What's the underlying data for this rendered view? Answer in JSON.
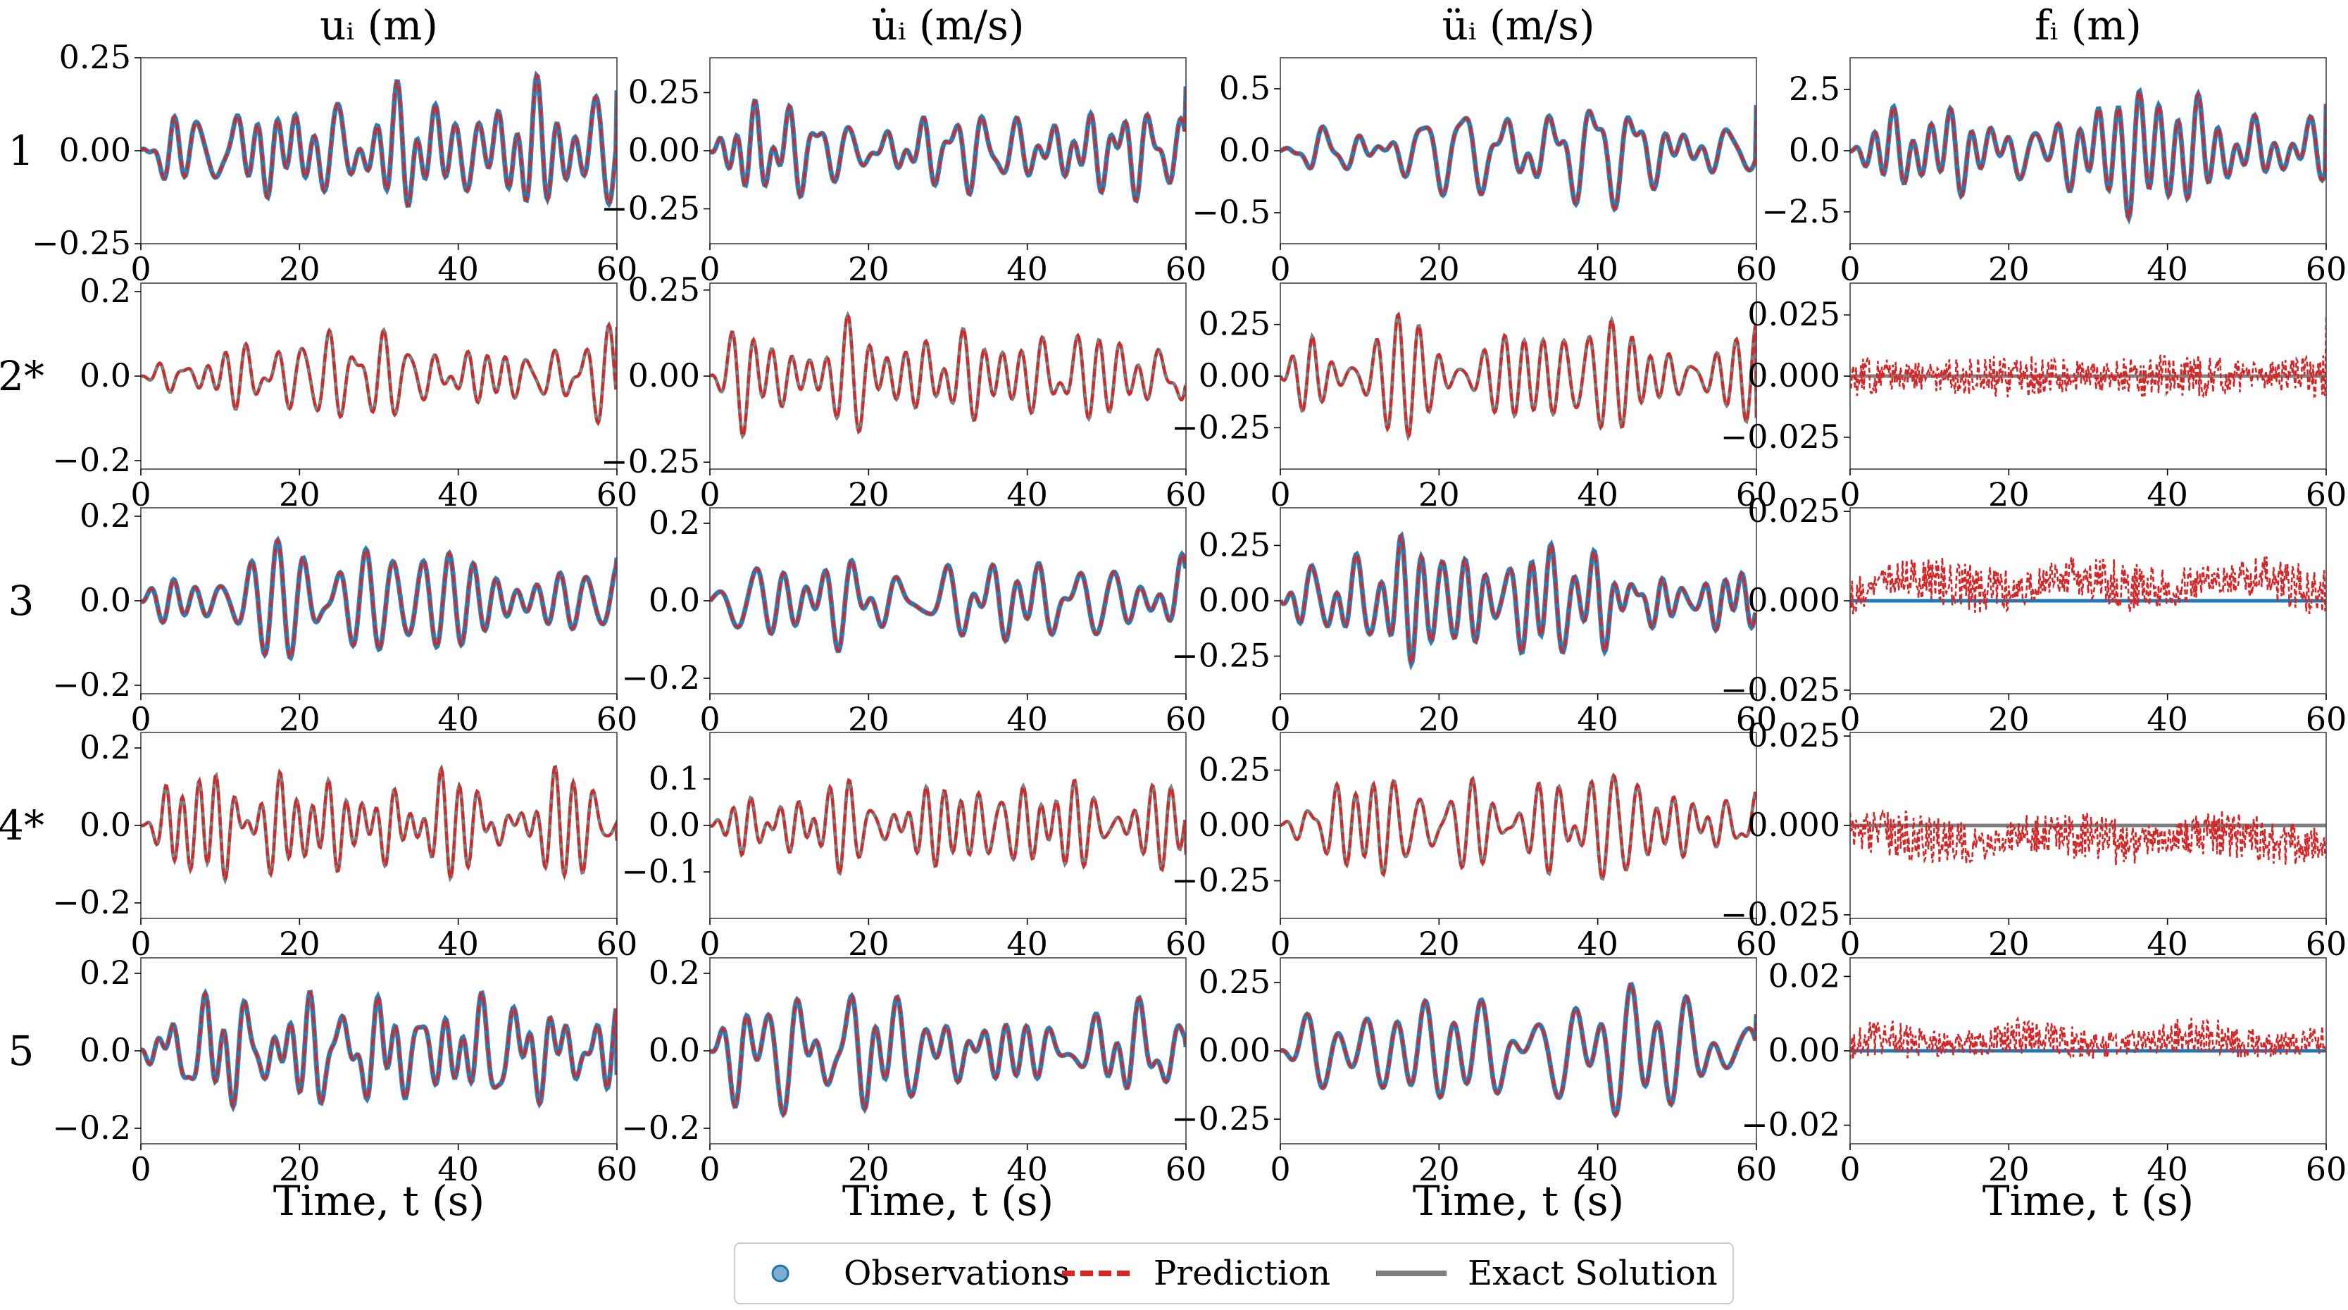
{
  "figure": {
    "columns": [
      {
        "key": "u",
        "title": "uᵢ (m)"
      },
      {
        "key": "udot",
        "title": "u̇ᵢ (m/s)"
      },
      {
        "key": "uddot",
        "title": "üᵢ (m/s)"
      },
      {
        "key": "f",
        "title": "fᵢ (m)"
      }
    ],
    "rows": [
      {
        "label": "1",
        "observed": true
      },
      {
        "label": "2*",
        "observed": false
      },
      {
        "label": "3",
        "observed": true
      },
      {
        "label": "4*",
        "observed": false
      },
      {
        "label": "5",
        "observed": true
      }
    ],
    "xlabel": "Time, t (s)",
    "colors": {
      "observations": "#1f77b4",
      "prediction": "#d62728",
      "exact": "#7f7f7f"
    },
    "legend": {
      "placement": "bottom-center",
      "entries": [
        {
          "key": "observations",
          "label": "Observations",
          "marker": "circle"
        },
        {
          "key": "prediction",
          "label": "Prediction",
          "style": "dashed"
        },
        {
          "key": "exact",
          "label": "Exact Solution",
          "style": "solid"
        }
      ]
    }
  },
  "chart_data": [
    {
      "type": "line",
      "row": "1",
      "column": "uᵢ (m)",
      "xlim": [
        0,
        60
      ],
      "ylim": [
        -0.25,
        0.25
      ],
      "xticks": [
        0,
        20,
        40,
        60
      ],
      "yticks": [
        -0.25,
        0.0,
        0.25
      ],
      "ytick_labels": [
        "−0.25",
        "0.00",
        "0.25"
      ],
      "series": [
        {
          "key": "observations"
        },
        {
          "key": "prediction"
        },
        {
          "key": "exact"
        }
      ],
      "signal": {
        "amp": 0.1,
        "force_amp": 0,
        "noise_amp": 0,
        "noise_bias": 0,
        "seed": 1,
        "last": 0.22
      }
    },
    {
      "type": "line",
      "row": "1",
      "column": "u̇ᵢ (m/s)",
      "xlim": [
        0,
        60
      ],
      "ylim": [
        -0.4,
        0.4
      ],
      "xticks": [
        0,
        20,
        40,
        60
      ],
      "yticks": [
        -0.25,
        0.0,
        0.25
      ],
      "ytick_labels": [
        "−0.25",
        "0.00",
        "0.25"
      ],
      "series": [
        {
          "key": "observations"
        },
        {
          "key": "prediction"
        },
        {
          "key": "exact"
        }
      ],
      "signal": {
        "amp": 0.14,
        "force_amp": 0,
        "noise_amp": 0,
        "noise_bias": 0,
        "seed": 2,
        "last": 0.37
      }
    },
    {
      "type": "line",
      "row": "1",
      "column": "üᵢ (m/s)",
      "xlim": [
        0,
        60
      ],
      "ylim": [
        -0.75,
        0.75
      ],
      "xticks": [
        0,
        20,
        40,
        60
      ],
      "yticks": [
        -0.5,
        0.0,
        0.5
      ],
      "ytick_labels": [
        "−0.5",
        "0.0",
        "0.5"
      ],
      "series": [
        {
          "key": "observations"
        },
        {
          "key": "prediction"
        },
        {
          "key": "exact"
        }
      ],
      "signal": {
        "amp": 0.28,
        "force_amp": 0,
        "noise_amp": 0,
        "noise_bias": 0,
        "seed": 3,
        "last": 0.55
      }
    },
    {
      "type": "line",
      "row": "1",
      "column": "fᵢ (m)",
      "xlim": [
        0,
        60
      ],
      "ylim": [
        -3.8,
        3.8
      ],
      "xticks": [
        0,
        20,
        40,
        60
      ],
      "yticks": [
        -2.5,
        0.0,
        2.5
      ],
      "ytick_labels": [
        "−2.5",
        "0.0",
        "2.5"
      ],
      "series": [
        {
          "key": "observations"
        },
        {
          "key": "prediction"
        },
        {
          "key": "exact"
        }
      ],
      "signal": {
        "amp": 1.4,
        "force_amp": 0,
        "noise_amp": 0,
        "noise_bias": 0,
        "seed": 4,
        "last": 3.0
      }
    },
    {
      "type": "line",
      "row": "2*",
      "column": "uᵢ (m)",
      "xlim": [
        0,
        60
      ],
      "ylim": [
        -0.22,
        0.22
      ],
      "xticks": [
        0,
        20,
        40,
        60
      ],
      "yticks": [
        -0.2,
        0.0,
        0.2
      ],
      "ytick_labels": [
        "−0.2",
        "0.0",
        "0.2"
      ],
      "series": [
        {
          "key": "prediction"
        },
        {
          "key": "exact"
        }
      ],
      "signal": {
        "amp": 0.09,
        "force_amp": 0,
        "noise_amp": 0,
        "noise_bias": 0,
        "seed": 5,
        "last": 0.19
      }
    },
    {
      "type": "line",
      "row": "2*",
      "column": "u̇ᵢ (m/s)",
      "xlim": [
        0,
        60
      ],
      "ylim": [
        -0.27,
        0.27
      ],
      "xticks": [
        0,
        20,
        40,
        60
      ],
      "yticks": [
        -0.25,
        0.0,
        0.25
      ],
      "ytick_labels": [
        "−0.25",
        "0.00",
        "0.25"
      ],
      "series": [
        {
          "key": "prediction"
        },
        {
          "key": "exact"
        }
      ],
      "signal": {
        "amp": 0.11,
        "force_amp": 0,
        "noise_amp": 0,
        "noise_bias": 0,
        "seed": 6,
        "last": -0.05
      }
    },
    {
      "type": "line",
      "row": "2*",
      "column": "üᵢ (m/s)",
      "xlim": [
        0,
        60
      ],
      "ylim": [
        -0.45,
        0.45
      ],
      "xticks": [
        0,
        20,
        40,
        60
      ],
      "yticks": [
        -0.25,
        0.0,
        0.25
      ],
      "ytick_labels": [
        "−0.25",
        "0.00",
        "0.25"
      ],
      "series": [
        {
          "key": "prediction"
        },
        {
          "key": "exact"
        }
      ],
      "signal": {
        "amp": 0.17,
        "force_amp": 0,
        "noise_amp": 0,
        "noise_bias": 0,
        "seed": 7,
        "last": -0.4
      }
    },
    {
      "type": "line",
      "row": "2*",
      "column": "fᵢ (m)",
      "xlim": [
        0,
        60
      ],
      "ylim": [
        -0.038,
        0.038
      ],
      "xticks": [
        0,
        20,
        40,
        60
      ],
      "yticks": [
        -0.025,
        0.0,
        0.025
      ],
      "ytick_labels": [
        "−0.025",
        "0.000",
        "0.025"
      ],
      "series": [
        {
          "key": "prediction"
        },
        {
          "key": "exact"
        }
      ],
      "signal": {
        "amp": 0,
        "force_amp": 0,
        "noise_amp": 0.009,
        "noise_bias": 0,
        "seed": 8,
        "last": 0.035
      }
    },
    {
      "type": "line",
      "row": "3",
      "column": "uᵢ (m)",
      "xlim": [
        0,
        60
      ],
      "ylim": [
        -0.22,
        0.22
      ],
      "xticks": [
        0,
        20,
        40,
        60
      ],
      "yticks": [
        -0.2,
        0.0,
        0.2
      ],
      "ytick_labels": [
        "−0.2",
        "0.0",
        "0.2"
      ],
      "series": [
        {
          "key": "observations"
        },
        {
          "key": "prediction"
        },
        {
          "key": "exact"
        }
      ],
      "signal": {
        "amp": 0.09,
        "force_amp": 0,
        "noise_amp": 0,
        "noise_bias": 0,
        "seed": 9,
        "last": 0.11
      }
    },
    {
      "type": "line",
      "row": "3",
      "column": "u̇ᵢ (m/s)",
      "xlim": [
        0,
        60
      ],
      "ylim": [
        -0.24,
        0.24
      ],
      "xticks": [
        0,
        20,
        40,
        60
      ],
      "yticks": [
        -0.2,
        0.0,
        0.2
      ],
      "ytick_labels": [
        "−0.2",
        "0.0",
        "0.2"
      ],
      "series": [
        {
          "key": "observations"
        },
        {
          "key": "prediction"
        },
        {
          "key": "exact"
        }
      ],
      "signal": {
        "amp": 0.1,
        "force_amp": 0,
        "noise_amp": 0,
        "noise_bias": 0,
        "seed": 10,
        "last": 0.09
      }
    },
    {
      "type": "line",
      "row": "3",
      "column": "üᵢ (m/s)",
      "xlim": [
        0,
        60
      ],
      "ylim": [
        -0.42,
        0.42
      ],
      "xticks": [
        0,
        20,
        40,
        60
      ],
      "yticks": [
        -0.25,
        0.0,
        0.25
      ],
      "ytick_labels": [
        "−0.25",
        "0.00",
        "0.25"
      ],
      "series": [
        {
          "key": "observations"
        },
        {
          "key": "prediction"
        },
        {
          "key": "exact"
        }
      ],
      "signal": {
        "amp": 0.16,
        "force_amp": 0,
        "noise_amp": 0,
        "noise_bias": 0,
        "seed": 11,
        "last": -0.1
      }
    },
    {
      "type": "line",
      "row": "3",
      "column": "fᵢ (m)",
      "xlim": [
        0,
        60
      ],
      "ylim": [
        -0.026,
        0.026
      ],
      "xticks": [
        0,
        20,
        40,
        60
      ],
      "yticks": [
        -0.025,
        0.0,
        0.025
      ],
      "ytick_labels": [
        "−0.025",
        "0.000",
        "0.025"
      ],
      "series": [
        {
          "key": "observations"
        },
        {
          "key": "prediction"
        },
        {
          "key": "exact"
        }
      ],
      "signal": {
        "amp": 0,
        "force_amp": 0,
        "noise_amp": 0.007,
        "noise_bias": 0.007,
        "seed": 12,
        "last": 0.0
      }
    },
    {
      "type": "line",
      "row": "4*",
      "column": "uᵢ (m)",
      "xlim": [
        0,
        60
      ],
      "ylim": [
        -0.24,
        0.24
      ],
      "xticks": [
        0,
        20,
        40,
        60
      ],
      "yticks": [
        -0.2,
        0.0,
        0.2
      ],
      "ytick_labels": [
        "−0.2",
        "0.0",
        "0.2"
      ],
      "series": [
        {
          "key": "prediction"
        },
        {
          "key": "exact"
        }
      ],
      "signal": {
        "amp": 0.09,
        "force_amp": 0,
        "noise_amp": 0,
        "noise_bias": 0,
        "seed": 13,
        "last": -0.06
      }
    },
    {
      "type": "line",
      "row": "4*",
      "column": "u̇ᵢ (m/s)",
      "xlim": [
        0,
        60
      ],
      "ylim": [
        -0.2,
        0.2
      ],
      "xticks": [
        0,
        20,
        40,
        60
      ],
      "yticks": [
        -0.1,
        0.0,
        0.1
      ],
      "ytick_labels": [
        "−0.1",
        "0.0",
        "0.1"
      ],
      "series": [
        {
          "key": "prediction"
        },
        {
          "key": "exact"
        }
      ],
      "signal": {
        "amp": 0.08,
        "force_amp": 0,
        "noise_amp": 0,
        "noise_bias": 0,
        "seed": 14,
        "last": -0.1
      }
    },
    {
      "type": "line",
      "row": "4*",
      "column": "üᵢ (m/s)",
      "xlim": [
        0,
        60
      ],
      "ylim": [
        -0.42,
        0.42
      ],
      "xticks": [
        0,
        20,
        40,
        60
      ],
      "yticks": [
        -0.25,
        0.0,
        0.25
      ],
      "ytick_labels": [
        "−0.25",
        "0.00",
        "0.25"
      ],
      "series": [
        {
          "key": "prediction"
        },
        {
          "key": "exact"
        }
      ],
      "signal": {
        "amp": 0.16,
        "force_amp": 0,
        "noise_amp": 0,
        "noise_bias": 0,
        "seed": 15,
        "last": 0.1
      }
    },
    {
      "type": "line",
      "row": "4*",
      "column": "fᵢ (m)",
      "xlim": [
        0,
        60
      ],
      "ylim": [
        -0.026,
        0.026
      ],
      "xticks": [
        0,
        20,
        40,
        60
      ],
      "yticks": [
        -0.025,
        0.0,
        0.025
      ],
      "ytick_labels": [
        "−0.025",
        "0.000",
        "0.025"
      ],
      "series": [
        {
          "key": "prediction"
        },
        {
          "key": "exact"
        }
      ],
      "signal": {
        "amp": 0,
        "force_amp": 0,
        "noise_amp": 0.007,
        "noise_bias": -0.005,
        "seed": 16,
        "last": -0.012
      }
    },
    {
      "type": "line",
      "row": "5",
      "column": "uᵢ (m)",
      "xlim": [
        0,
        60
      ],
      "ylim": [
        -0.24,
        0.24
      ],
      "xticks": [
        0,
        20,
        40,
        60
      ],
      "yticks": [
        -0.2,
        0.0,
        0.2
      ],
      "ytick_labels": [
        "−0.2",
        "0.0",
        "0.2"
      ],
      "series": [
        {
          "key": "observations"
        },
        {
          "key": "prediction"
        },
        {
          "key": "exact"
        }
      ],
      "signal": {
        "amp": 0.1,
        "force_amp": 0,
        "noise_amp": 0,
        "noise_bias": 0,
        "seed": 17,
        "last": -0.14
      }
    },
    {
      "type": "line",
      "row": "5",
      "column": "u̇ᵢ (m/s)",
      "xlim": [
        0,
        60
      ],
      "ylim": [
        -0.24,
        0.24
      ],
      "xticks": [
        0,
        20,
        40,
        60
      ],
      "yticks": [
        -0.2,
        0.0,
        0.2
      ],
      "ytick_labels": [
        "−0.2",
        "0.0",
        "0.2"
      ],
      "series": [
        {
          "key": "observations"
        },
        {
          "key": "prediction"
        },
        {
          "key": "exact"
        }
      ],
      "signal": {
        "amp": 0.1,
        "force_amp": 0,
        "noise_amp": 0,
        "noise_bias": 0,
        "seed": 18,
        "last": 0.0
      }
    },
    {
      "type": "line",
      "row": "5",
      "column": "üᵢ (m/s)",
      "xlim": [
        0,
        60
      ],
      "ylim": [
        -0.34,
        0.34
      ],
      "xticks": [
        0,
        20,
        40,
        60
      ],
      "yticks": [
        -0.25,
        0.0,
        0.25
      ],
      "ytick_labels": [
        "−0.25",
        "0.00",
        "0.25"
      ],
      "series": [
        {
          "key": "observations"
        },
        {
          "key": "prediction"
        },
        {
          "key": "exact"
        }
      ],
      "signal": {
        "amp": 0.13,
        "force_amp": 0,
        "noise_amp": 0,
        "noise_bias": 0,
        "seed": 19,
        "last": 0.18
      }
    },
    {
      "type": "line",
      "row": "5",
      "column": "fᵢ (m)",
      "xlim": [
        0,
        60
      ],
      "ylim": [
        -0.025,
        0.025
      ],
      "xticks": [
        0,
        20,
        40,
        60
      ],
      "yticks": [
        -0.02,
        0.0,
        0.02
      ],
      "ytick_labels": [
        "−0.02",
        "0.00",
        "0.02"
      ],
      "series": [
        {
          "key": "observations"
        },
        {
          "key": "prediction"
        },
        {
          "key": "exact"
        }
      ],
      "signal": {
        "amp": 0,
        "force_amp": 0,
        "noise_amp": 0.005,
        "noise_bias": 0.004,
        "seed": 20,
        "last": 0.0
      }
    }
  ]
}
